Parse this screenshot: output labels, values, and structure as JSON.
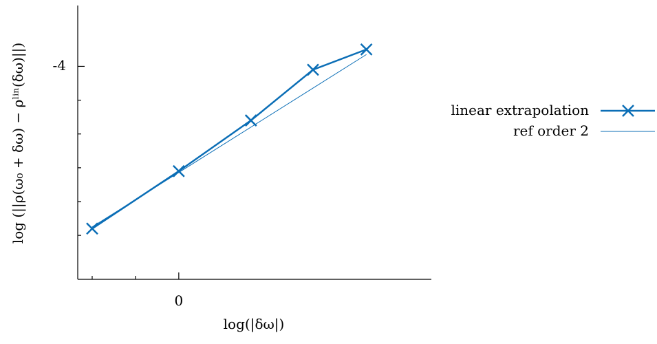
{
  "chart_data": {
    "type": "line",
    "title": "",
    "xlabel": "log(|δω|)",
    "ylabel": "log (||ρ(ω₀ + δω) − ρˡⁱⁿ(δω)||)",
    "x_tick_labels": [
      {
        "value": 0,
        "label": "0"
      }
    ],
    "y_tick_labels": [
      {
        "value": -4,
        "label": "-4"
      }
    ],
    "xlim": [
      -0.7,
      1.75
    ],
    "ylim": [
      -10.3,
      -2.2
    ],
    "grid": false,
    "legend": "right",
    "series": [
      {
        "name": "linear extrapolation",
        "color": "#0b6eb6",
        "marker": "x",
        "x": [
          -0.6,
          0.0,
          0.5,
          0.93,
          1.3
        ],
        "y": [
          -8.8,
          -7.1,
          -5.6,
          -4.1,
          -3.5
        ]
      },
      {
        "name": "ref order 2",
        "color": "#0b6eb6",
        "marker": "none",
        "x": [
          -0.6,
          1.3
        ],
        "y": [
          -8.75,
          -3.65
        ]
      }
    ]
  }
}
